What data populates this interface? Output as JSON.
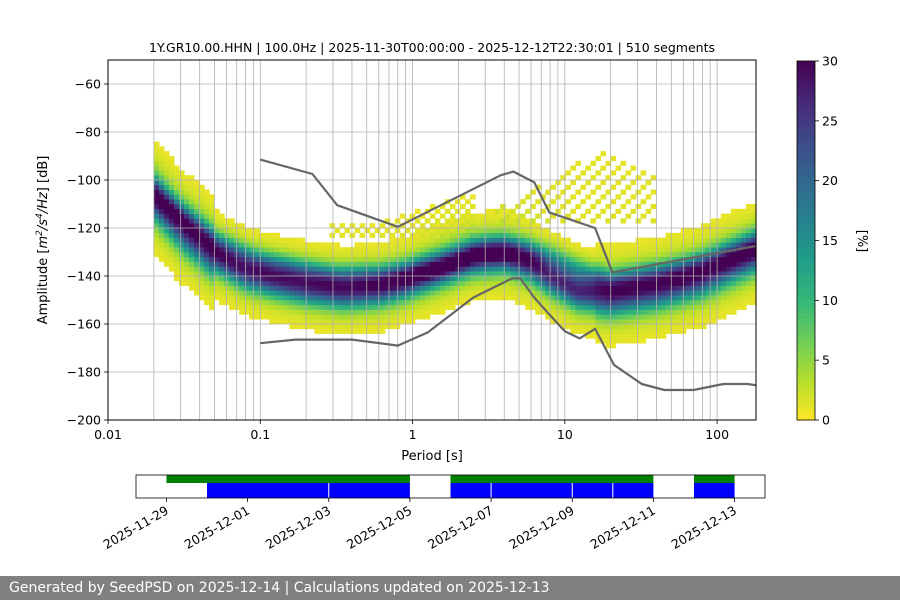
{
  "chart_data": {
    "type": "heatmap",
    "title": "1Y.GR10.00.HHN | 100.0Hz | 2025-11-30T00:00:00 - 2025-12-12T22:30:01 | 510 segments",
    "xlabel": "Period [s]",
    "ylabel": "Amplitude [m²/s⁴/Hz] [dB]",
    "x_scale": "log",
    "xlim": [
      0.01,
      180
    ],
    "ylim": [
      -200,
      -50
    ],
    "x_ticks": [
      {
        "value": 0.01,
        "label": "0.01"
      },
      {
        "value": 0.1,
        "label": "0.1"
      },
      {
        "value": 1,
        "label": "1"
      },
      {
        "value": 10,
        "label": "10"
      },
      {
        "value": 100,
        "label": "100"
      }
    ],
    "y_ticks": [
      -200,
      -180,
      -160,
      -140,
      -120,
      -100,
      -80,
      -60
    ],
    "y_tick_labels": [
      "−200",
      "−180",
      "−160",
      "−140",
      "−120",
      "−100",
      "−80",
      "−60"
    ],
    "grid": true,
    "colorbar": {
      "label": "[%]",
      "range": [
        0,
        30
      ],
      "ticks": [
        0,
        5,
        10,
        15,
        20,
        25,
        30
      ],
      "colormap": "viridis_r"
    },
    "psd_density": {
      "description_free": true,
      "period_range": [
        0.02,
        180
      ],
      "mode_curve": [
        [
          0.02,
          -107
        ],
        [
          0.03,
          -119
        ],
        [
          0.05,
          -131
        ],
        [
          0.08,
          -138
        ],
        [
          0.12,
          -141
        ],
        [
          0.2,
          -144
        ],
        [
          0.35,
          -146
        ],
        [
          0.6,
          -145
        ],
        [
          0.9,
          -142
        ],
        [
          1.5,
          -137
        ],
        [
          2.5,
          -132
        ],
        [
          4,
          -131
        ],
        [
          5,
          -133
        ],
        [
          6,
          -135
        ],
        [
          8,
          -140
        ],
        [
          12,
          -146
        ],
        [
          20,
          -148
        ],
        [
          40,
          -145
        ],
        [
          80,
          -140
        ],
        [
          180,
          -130
        ]
      ],
      "upper_branch": [
        [
          0.02,
          -105
        ],
        [
          0.05,
          -126
        ],
        [
          0.1,
          -134
        ],
        [
          0.3,
          -140
        ],
        [
          0.8,
          -140
        ],
        [
          1.5,
          -136
        ],
        [
          3,
          -129
        ],
        [
          5,
          -129
        ],
        [
          8,
          -132
        ],
        [
          20,
          -143
        ],
        [
          60,
          -138
        ],
        [
          180,
          -127
        ]
      ]
    },
    "series": [
      {
        "name": "",
        "color": "#666666",
        "points": [
          [
            0.1,
            -91.5
          ],
          [
            0.22,
            -97.5
          ],
          [
            0.32,
            -110.5
          ],
          [
            0.8,
            -119.5
          ],
          [
            3.8,
            -98
          ],
          [
            4.6,
            -96.5
          ],
          [
            6.3,
            -101
          ],
          [
            7.9,
            -113.5
          ],
          [
            15.8,
            -120
          ],
          [
            20.5,
            -138.5
          ],
          [
            180,
            -127.5
          ]
        ]
      },
      {
        "name": "",
        "color": "#666666",
        "points": [
          [
            0.1,
            -168
          ],
          [
            0.17,
            -166.5
          ],
          [
            0.4,
            -166.5
          ],
          [
            0.8,
            -169
          ],
          [
            1.26,
            -163.5
          ],
          [
            2.5,
            -149
          ],
          [
            4.5,
            -141
          ],
          [
            5.1,
            -141
          ],
          [
            6.3,
            -149
          ],
          [
            7.9,
            -156
          ],
          [
            10,
            -163
          ],
          [
            12.5,
            -166
          ],
          [
            15.8,
            -162
          ],
          [
            21,
            -177
          ],
          [
            32,
            -185
          ],
          [
            45,
            -187.5
          ],
          [
            70,
            -187.5
          ],
          [
            110,
            -185
          ],
          [
            158,
            -185
          ],
          [
            180,
            -185.5
          ]
        ]
      }
    ],
    "availability": {
      "x_ticks": [
        "2025-11-29",
        "2025-12-01",
        "2025-12-03",
        "2025-12-05",
        "2025-12-07",
        "2025-12-09",
        "2025-12-11",
        "2025-12-13"
      ],
      "date_range": [
        "2025-11-28T06:00:00",
        "2025-12-13T18:00:00"
      ],
      "green": [
        [
          "2025-11-29T00:00:00",
          "2025-12-05T00:00:00"
        ],
        [
          "2025-12-06T00:00:00",
          "2025-12-11T00:00:00"
        ],
        [
          "2025-12-12T00:00:00",
          "2025-12-13T00:00:00"
        ]
      ],
      "blue": [
        [
          "2025-11-30T00:00:00",
          "2025-12-05T00:00:00"
        ],
        [
          "2025-12-06T00:00:00",
          "2025-12-11T00:00:00"
        ],
        [
          "2025-12-12T00:00:00",
          "2025-12-13T00:00:00"
        ]
      ],
      "blue_divisions": [
        "2025-12-03T00:00:00",
        "2025-12-07T00:00:00",
        "2025-12-09T00:00:00",
        "2025-12-10T00:00:00"
      ]
    },
    "colors": {
      "grid": "#b0b0b0",
      "curve": "#666666",
      "green": "#008000",
      "blue": "#0000ff"
    }
  },
  "footer": {
    "generated": "Generated by SeedPSD on 2025-12-14",
    "separator": " | ",
    "updated": "Calculations updated on 2025-12-13"
  }
}
